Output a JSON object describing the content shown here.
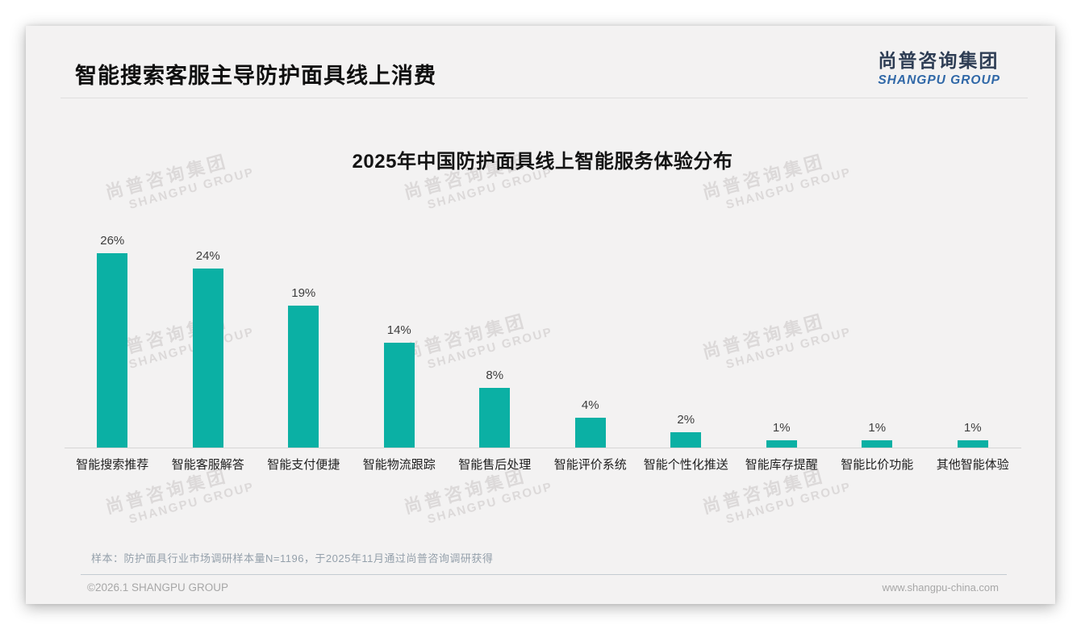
{
  "header": {
    "title": "智能搜索客服主导防护面具线上消费",
    "logo_cn": "尚普咨询集团",
    "logo_en": "SHANGPU GROUP"
  },
  "watermark": {
    "line1": "尚普咨询集团",
    "line2": "SHANGPU GROUP"
  },
  "chart_data": {
    "type": "bar",
    "title": "2025年中国防护面具线上智能服务体验分布",
    "categories": [
      "智能搜索推荐",
      "智能客服解答",
      "智能支付便捷",
      "智能物流跟踪",
      "智能售后处理",
      "智能评价系统",
      "智能个性化推送",
      "智能库存提醒",
      "智能比价功能",
      "其他智能体验"
    ],
    "values": [
      26,
      24,
      19,
      14,
      8,
      4,
      2,
      1,
      1,
      1
    ],
    "value_labels": [
      "26%",
      "24%",
      "19%",
      "14%",
      "8%",
      "4%",
      "2%",
      "1%",
      "1%",
      "1%"
    ],
    "unit": "%",
    "ylim": [
      0,
      28
    ],
    "grid": false,
    "legend_position": "none",
    "xlabel": "",
    "ylabel": "",
    "bar_color": "#0BB0A4"
  },
  "footnote": "样本：防护面具行业市场调研样本量N=1196，于2025年11月通过尚普咨询调研获得",
  "footer": {
    "left": "©2026.1 SHANGPU GROUP",
    "right": "www.shangpu-china.com"
  },
  "colors": {
    "bar": "#0BB0A4",
    "card_bg": "#F3F2F2",
    "logo_cn": "#2E3D54",
    "logo_en": "#2F67A7"
  }
}
